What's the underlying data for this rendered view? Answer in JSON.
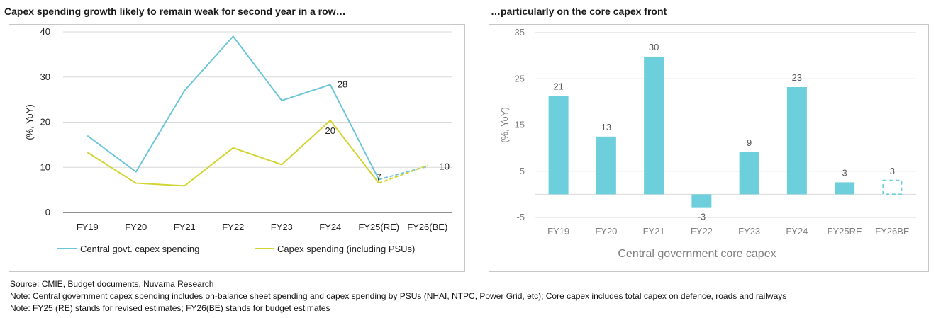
{
  "titles": {
    "left": "Capex spending growth likely to remain weak for second year in a row…",
    "right": "…particularly on the core capex front"
  },
  "notes": {
    "source": "Source: CMIE, Budget documents, Nuvama Research",
    "note1": "Note: Central government capex spending includes on-balance sheet spending and capex spending by PSUs (NHAI, NTPC, Power Grid, etc); Core capex includes total capex on defence, roads and railways",
    "note2": "Note: FY25 (RE) stands for revised estimates; FY26(BE) stands for budget estimates"
  },
  "chart_data": [
    {
      "type": "line",
      "title": "Capex spending growth likely to remain weak for second year in a row…",
      "xlabel": "",
      "ylabel": "(%, YoY)",
      "ylim": [
        0,
        40
      ],
      "yticks": [
        "0",
        "10",
        "20",
        "30",
        "40"
      ],
      "categories": [
        "FY19",
        "FY20",
        "FY21",
        "FY22",
        "FY23",
        "FY24",
        "FY25(RE)",
        "FY26(BE)"
      ],
      "series": [
        {
          "name": "Central govt. capex spending",
          "color": "#6cc6d9",
          "values": [
            17,
            9,
            27,
            39,
            24.8,
            28.3,
            7.3,
            10.2
          ],
          "labels": [
            "",
            "",
            "",
            "",
            "",
            "28",
            "7",
            ""
          ]
        },
        {
          "name": "Capex spending (including PSUs)",
          "color": "#d2d431",
          "values": [
            13.3,
            6.5,
            5.9,
            14.3,
            10.6,
            20.4,
            6.5,
            10.4
          ],
          "labels": [
            "",
            "",
            "",
            "",
            "",
            "20",
            "",
            "10"
          ]
        }
      ],
      "projection_from_index": 6,
      "grid": true,
      "legend": "bottom"
    },
    {
      "type": "bar",
      "title": "…particularly on the core capex front",
      "xlabel": "Central government core capex",
      "ylabel": "(%, YoY)",
      "ylim": [
        -5,
        35
      ],
      "yticks": [
        "-5",
        "5",
        "15",
        "25",
        "35"
      ],
      "categories": [
        "FY19",
        "FY20",
        "FY21",
        "FY22",
        "FY23",
        "FY24",
        "FY25RE",
        "FY26BE"
      ],
      "values": [
        21.3,
        12.5,
        29.8,
        -2.8,
        9.1,
        23.2,
        2.6,
        3
      ],
      "labels": [
        "21",
        "13",
        "30",
        "-3",
        "9",
        "23",
        "3",
        "3"
      ],
      "color": "#6ecfdc",
      "dashed_last": true,
      "grid": true
    }
  ]
}
